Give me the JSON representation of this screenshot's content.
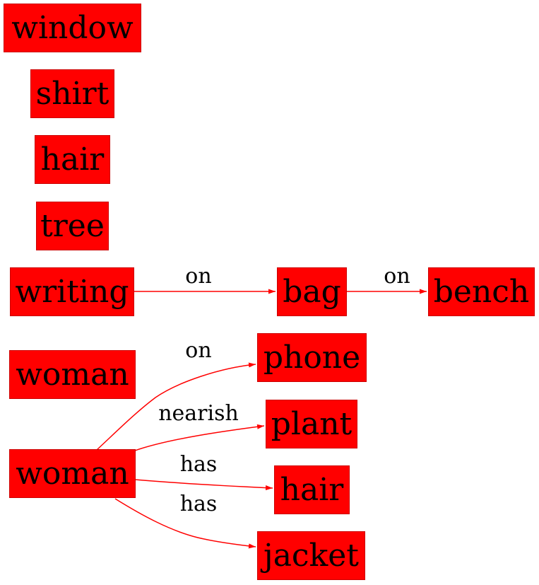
{
  "colors": {
    "node_fill": "#ff0000",
    "node_border": "#cc0000",
    "edge": "#ff0000",
    "text": "#000000"
  },
  "nodes": [
    {
      "id": "window",
      "label": "window"
    },
    {
      "id": "shirt",
      "label": "shirt"
    },
    {
      "id": "hair1",
      "label": "hair"
    },
    {
      "id": "tree",
      "label": "tree"
    },
    {
      "id": "writing",
      "label": "writing"
    },
    {
      "id": "bag",
      "label": "bag"
    },
    {
      "id": "bench",
      "label": "bench"
    },
    {
      "id": "woman1",
      "label": "woman"
    },
    {
      "id": "phone",
      "label": "phone"
    },
    {
      "id": "plant",
      "label": "plant"
    },
    {
      "id": "woman2",
      "label": "woman"
    },
    {
      "id": "hair2",
      "label": "hair"
    },
    {
      "id": "jacket",
      "label": "jacket"
    }
  ],
  "edges": [
    {
      "id": "writing-bag",
      "from": "writing",
      "to": "bag",
      "label": "on"
    },
    {
      "id": "bag-bench",
      "from": "bag",
      "to": "bench",
      "label": "on"
    },
    {
      "id": "woman2-phone",
      "from": "woman2",
      "to": "phone",
      "label": "on"
    },
    {
      "id": "woman2-plant",
      "from": "woman2",
      "to": "plant",
      "label": "nearish"
    },
    {
      "id": "woman2-hair2",
      "from": "woman2",
      "to": "hair2",
      "label": "has"
    },
    {
      "id": "woman2-jacket",
      "from": "woman2",
      "to": "jacket",
      "label": "has"
    }
  ]
}
